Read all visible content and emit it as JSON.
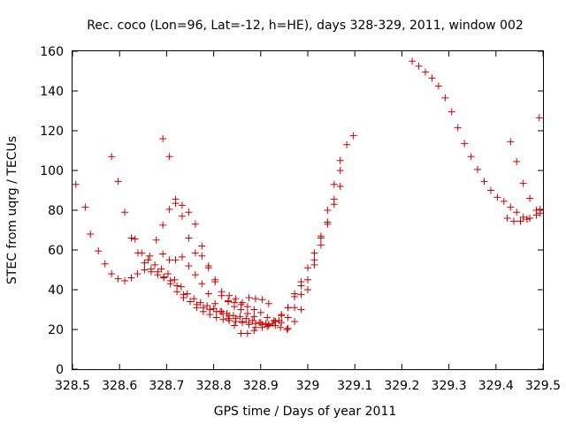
{
  "chart_data": {
    "type": "scatter",
    "title": "Rec. coco (Lon=96, Lat=-12, h=HE), days 328-329, 2011, window 002",
    "xlabel": "GPS time / Days of year 2011",
    "ylabel": "STEC from uqrg / TECUs",
    "xlim": [
      328.5,
      329.5
    ],
    "ylim": [
      0,
      160
    ],
    "x_ticks": [
      "328.5",
      "328.6",
      "328.7",
      "328.8",
      "328.9",
      "329",
      "329.1",
      "329.2",
      "329.3",
      "329.4",
      "329.5"
    ],
    "y_ticks": [
      "0",
      "20",
      "40",
      "60",
      "80",
      "100",
      "120",
      "140",
      "160"
    ],
    "grid": false,
    "legend": false,
    "marker": "plus",
    "color": "#cc0000",
    "series": [
      {
        "points": [
          [
            328.507,
            93
          ],
          [
            328.527,
            81.5
          ],
          [
            328.538,
            68
          ],
          [
            328.555,
            59.5
          ],
          [
            328.569,
            53
          ],
          [
            328.583,
            48
          ],
          [
            328.597,
            45.5
          ],
          [
            328.611,
            44.5
          ],
          [
            328.625,
            46
          ],
          [
            328.638,
            48
          ],
          [
            328.653,
            50
          ],
          [
            328.667,
            49
          ],
          [
            328.681,
            47.5
          ],
          [
            328.694,
            46
          ],
          [
            328.708,
            44.5
          ],
          [
            328.722,
            42
          ],
          [
            328.736,
            37.5
          ],
          [
            328.75,
            34
          ],
          [
            328.764,
            31
          ],
          [
            328.778,
            29
          ],
          [
            328.792,
            27.5
          ],
          [
            328.806,
            26
          ],
          [
            328.82,
            25
          ],
          [
            328.833,
            24.5
          ],
          [
            328.847,
            24
          ],
          [
            328.861,
            23.5
          ],
          [
            328.875,
            23.5
          ],
          [
            328.889,
            23
          ],
          [
            328.903,
            22.5
          ],
          [
            328.917,
            22
          ],
          [
            328.931,
            22
          ],
          [
            328.944,
            23.5
          ],
          [
            328.958,
            26
          ],
          [
            328.972,
            31
          ],
          [
            328.986,
            37.5
          ],
          [
            329.0,
            45
          ],
          [
            329.014,
            55
          ],
          [
            329.028,
            67
          ],
          [
            329.042,
            80
          ],
          [
            329.056,
            93
          ],
          [
            329.069,
            105
          ],
          [
            329.083,
            113
          ],
          [
            329.097,
            117.5
          ]
        ]
      },
      {
        "points": [
          [
            328.583,
            107
          ],
          [
            328.597,
            94.5
          ],
          [
            328.611,
            79
          ],
          [
            328.625,
            66
          ],
          [
            328.639,
            58.5
          ],
          [
            328.653,
            53.5
          ],
          [
            328.667,
            50.5
          ],
          [
            328.681,
            49
          ],
          [
            328.694,
            46.5
          ],
          [
            328.708,
            43
          ],
          [
            328.722,
            39
          ],
          [
            328.736,
            36
          ],
          [
            328.75,
            34
          ],
          [
            328.764,
            32.5
          ],
          [
            328.778,
            31
          ],
          [
            328.792,
            30
          ],
          [
            328.806,
            29
          ],
          [
            328.82,
            28
          ],
          [
            328.833,
            27
          ],
          [
            328.847,
            25.5
          ],
          [
            328.861,
            24
          ],
          [
            328.875,
            22.5
          ],
          [
            328.889,
            21
          ],
          [
            328.903,
            21
          ],
          [
            328.917,
            22.5
          ],
          [
            328.931,
            24
          ],
          [
            328.944,
            27
          ],
          [
            328.958,
            31
          ]
        ]
      },
      {
        "points": [
          [
            328.633,
            65.5
          ],
          [
            328.647,
            58.5
          ],
          [
            328.661,
            55
          ],
          [
            328.675,
            52.5
          ],
          [
            328.689,
            50.5
          ],
          [
            328.703,
            48
          ],
          [
            328.717,
            45
          ],
          [
            328.731,
            41.5
          ],
          [
            328.744,
            38
          ],
          [
            328.758,
            35.5
          ],
          [
            328.772,
            33.5
          ],
          [
            328.786,
            32
          ],
          [
            328.8,
            30.5
          ],
          [
            328.814,
            29
          ],
          [
            328.828,
            28
          ],
          [
            328.842,
            27
          ],
          [
            328.856,
            26.5
          ],
          [
            328.869,
            25.5
          ],
          [
            328.883,
            24.5
          ],
          [
            328.897,
            23.5
          ],
          [
            328.911,
            23
          ],
          [
            328.925,
            23
          ],
          [
            328.939,
            24.5
          ]
        ]
      },
      {
        "points": [
          [
            328.664,
            57
          ],
          [
            328.678,
            65
          ],
          [
            328.692,
            72.5
          ],
          [
            328.706,
            80.5
          ],
          [
            328.719,
            85.5
          ],
          [
            328.733,
            82.5
          ],
          [
            328.747,
            79
          ],
          [
            328.761,
            73
          ],
          [
            328.775,
            62
          ],
          [
            328.789,
            51
          ],
          [
            328.803,
            44
          ],
          [
            328.817,
            37
          ],
          [
            328.831,
            34.5
          ],
          [
            328.844,
            33.5
          ],
          [
            328.858,
            32.5
          ],
          [
            328.872,
            31.5
          ],
          [
            328.886,
            30
          ],
          [
            328.9,
            28.5
          ],
          [
            328.914,
            26
          ],
          [
            328.928,
            24.5
          ],
          [
            328.942,
            21
          ],
          [
            328.956,
            20
          ]
        ]
      },
      {
        "points": [
          [
            328.692,
            116
          ],
          [
            328.706,
            107
          ],
          [
            328.719,
            83.5
          ],
          [
            328.733,
            77
          ],
          [
            328.747,
            66
          ],
          [
            328.761,
            58.5
          ],
          [
            328.775,
            57
          ],
          [
            328.789,
            52
          ],
          [
            328.803,
            45
          ],
          [
            328.817,
            39
          ],
          [
            328.831,
            34
          ],
          [
            328.844,
            31.5
          ],
          [
            328.858,
            30
          ],
          [
            328.872,
            28
          ],
          [
            328.886,
            26.5
          ],
          [
            328.9,
            23.5
          ],
          [
            328.914,
            21.5
          ]
        ]
      },
      {
        "points": [
          [
            328.692,
            58
          ],
          [
            328.706,
            55
          ],
          [
            328.719,
            55
          ],
          [
            328.733,
            56.5
          ],
          [
            328.747,
            52
          ],
          [
            328.761,
            47.5
          ],
          [
            328.775,
            43
          ],
          [
            328.789,
            38
          ],
          [
            328.803,
            33
          ],
          [
            328.817,
            29
          ],
          [
            328.831,
            25.5
          ],
          [
            328.844,
            22
          ],
          [
            328.858,
            18
          ],
          [
            328.872,
            18
          ],
          [
            328.886,
            19.5
          ]
        ]
      },
      {
        "points": [
          [
            328.833,
            37
          ],
          [
            328.847,
            35.5
          ],
          [
            328.861,
            33.5
          ],
          [
            328.875,
            36
          ],
          [
            328.889,
            35.5
          ],
          [
            328.903,
            35
          ],
          [
            328.917,
            33
          ],
          [
            328.931,
            24
          ],
          [
            328.944,
            27.5
          ],
          [
            328.958,
            31
          ],
          [
            328.972,
            36.5
          ],
          [
            328.986,
            42
          ]
        ]
      },
      {
        "points": [
          [
            328.972,
            38
          ],
          [
            328.986,
            44
          ],
          [
            329.0,
            51
          ],
          [
            329.014,
            58.5
          ],
          [
            329.028,
            66
          ],
          [
            329.042,
            74
          ],
          [
            329.056,
            83
          ],
          [
            329.069,
            92
          ]
        ]
      },
      {
        "points": [
          [
            328.958,
            20.5
          ],
          [
            328.972,
            24
          ],
          [
            328.986,
            30
          ],
          [
            329.0,
            40
          ],
          [
            329.014,
            52.5
          ],
          [
            329.028,
            62.5
          ],
          [
            329.042,
            73
          ],
          [
            329.056,
            85.5
          ],
          [
            329.069,
            100
          ]
        ]
      },
      {
        "points": [
          [
            329.222,
            155
          ],
          [
            329.236,
            152.5
          ],
          [
            329.25,
            149.5
          ],
          [
            329.264,
            146.5
          ],
          [
            329.278,
            142.5
          ],
          [
            329.292,
            136.5
          ],
          [
            329.306,
            129.5
          ],
          [
            329.319,
            121.5
          ],
          [
            329.333,
            113.5
          ],
          [
            329.347,
            107
          ],
          [
            329.361,
            100.5
          ],
          [
            329.375,
            94.5
          ],
          [
            329.389,
            90
          ],
          [
            329.403,
            86.5
          ],
          [
            329.417,
            84.5
          ],
          [
            329.431,
            81.5
          ],
          [
            329.444,
            79
          ],
          [
            329.458,
            76.5
          ],
          [
            329.472,
            76
          ],
          [
            329.486,
            77.5
          ],
          [
            329.494,
            78.5
          ]
        ]
      },
      {
        "points": [
          [
            329.431,
            114.5
          ],
          [
            329.444,
            104.5
          ],
          [
            329.458,
            93.5
          ],
          [
            329.472,
            86
          ],
          [
            329.486,
            80
          ],
          [
            329.494,
            80.5
          ],
          [
            329.424,
            76
          ],
          [
            329.438,
            74.5
          ],
          [
            329.452,
            74.5
          ],
          [
            329.466,
            75.5
          ],
          [
            329.492,
            126.5
          ]
        ]
      }
    ]
  }
}
